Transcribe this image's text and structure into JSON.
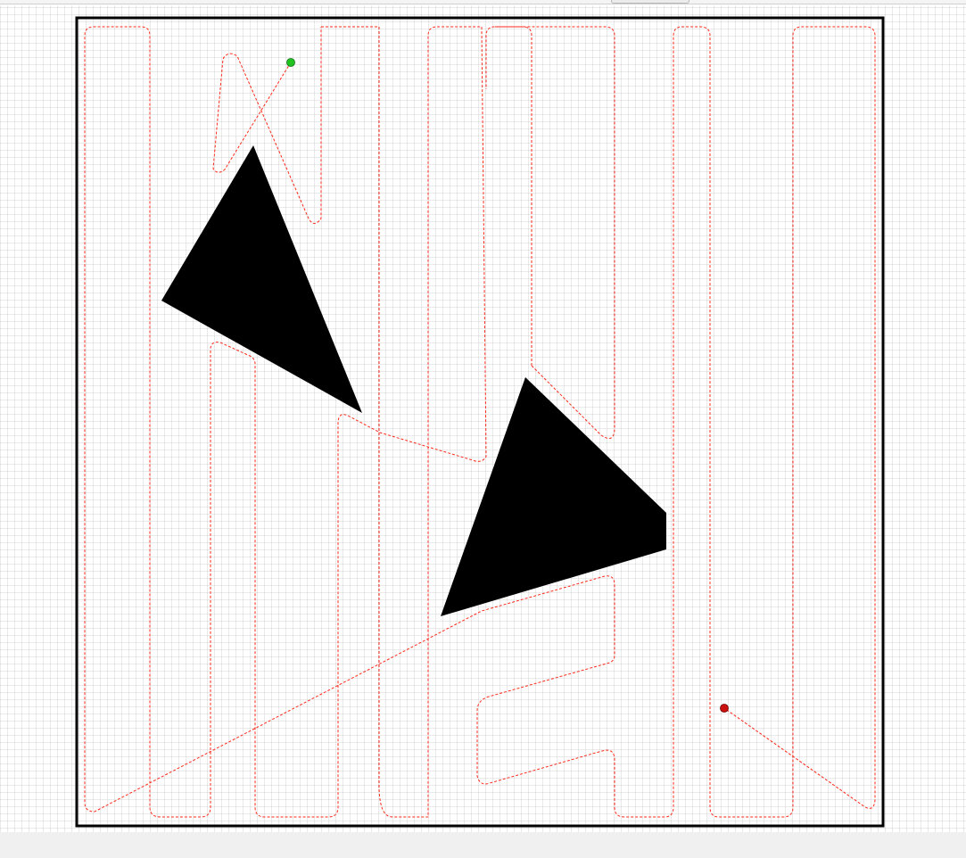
{
  "colors": {
    "grid_line": "#c8c8c8",
    "boundary": "#000000",
    "obstacle": "#000000",
    "path": "#ff2a1a",
    "start_marker": "#22c422",
    "end_marker": "#cc1111",
    "bottom_bar": "#f0f0f0"
  },
  "planner_view": {
    "obstacle_count": 2,
    "path_style": "dashed",
    "start_marker_color": "green",
    "end_marker_color": "red"
  }
}
